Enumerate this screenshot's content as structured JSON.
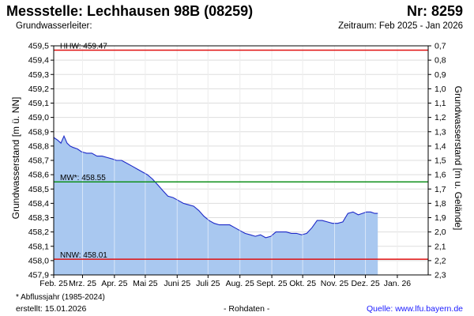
{
  "header": {
    "title": "Messstelle: Lechhausen 98B (08259)",
    "number": "Nr: 8259",
    "aquifer": "Grundwasserleiter:",
    "period": "Zeitraum: Feb 2025 - Jan 2026"
  },
  "footer": {
    "footnote": "* Abflussjahr (1985-2024)",
    "created": "erstellt:  15.01.2026",
    "raw": "- Rohdaten -",
    "source": "Quelle:  www.lfu.bayern.de"
  },
  "colors": {
    "fill": "#a9c8f0",
    "line": "#1c28c8",
    "hhw": "#e01010",
    "mw": "#10901c",
    "nnw": "#e01010",
    "grid": "#dddddd"
  },
  "chart_data": {
    "type": "area",
    "ylabel_left": "Grundwasserstand [m ü. NN]",
    "ylabel_right": "Grundwasserstand [m u. Gelände]",
    "ylim": [
      457.9,
      459.5
    ],
    "yticks_left": [
      "457,9",
      "458,0",
      "458,1",
      "458,2",
      "458,3",
      "458,4",
      "458,5",
      "458,6",
      "458,7",
      "458,8",
      "458,9",
      "459,0",
      "459,1",
      "459,2",
      "459,3",
      "459,4",
      "459,5"
    ],
    "yticks_left_values": [
      457.9,
      458.0,
      458.1,
      458.2,
      458.3,
      458.4,
      458.5,
      458.6,
      458.7,
      458.8,
      458.9,
      459.0,
      459.1,
      459.2,
      459.3,
      459.4,
      459.5
    ],
    "yticks_right": [
      "0,7",
      "0,8",
      "0,9",
      "1,0",
      "1,1",
      "1,2",
      "1,3",
      "1,4",
      "1,5",
      "1,6",
      "1,7",
      "1,8",
      "1,9",
      "2,0",
      "2,1",
      "2,2",
      "2,3"
    ],
    "yticks_right_values": [
      459.5,
      459.4,
      459.3,
      459.2,
      459.1,
      459.0,
      458.9,
      458.8,
      458.7,
      458.6,
      458.5,
      458.4,
      458.3,
      458.2,
      458.1,
      458.0,
      457.9
    ],
    "xlim": [
      "2025-02-01",
      "2026-01-31"
    ],
    "xticks": [
      {
        "date": "2025-02-01",
        "label": "Feb. 25"
      },
      {
        "date": "2025-03-01",
        "label": "Mrz. 25"
      },
      {
        "date": "2025-04-01",
        "label": "Apr. 25"
      },
      {
        "date": "2025-05-01",
        "label": "Mai 25"
      },
      {
        "date": "2025-06-01",
        "label": "Juni 25"
      },
      {
        "date": "2025-07-01",
        "label": "Juli 25"
      },
      {
        "date": "2025-08-01",
        "label": "Aug. 25"
      },
      {
        "date": "2025-09-01",
        "label": "Sept. 25"
      },
      {
        "date": "2025-10-01",
        "label": "Okt. 25"
      },
      {
        "date": "2025-11-01",
        "label": "Nov. 25"
      },
      {
        "date": "2025-12-01",
        "label": "Dez. 25"
      },
      {
        "date": "2026-01-01",
        "label": "Jan. 26"
      }
    ],
    "reference_lines": [
      {
        "label": "HHW: 459.47",
        "value": 459.47,
        "color": "#e01010"
      },
      {
        "label": "MW*: 458.55",
        "value": 458.55,
        "color": "#10901c"
      },
      {
        "label": "NNW: 458.01",
        "value": 458.01,
        "color": "#e01010"
      }
    ],
    "series": [
      {
        "dates": [
          "2025-02-01",
          "2025-02-05",
          "2025-02-08",
          "2025-02-11",
          "2025-02-14",
          "2025-02-17",
          "2025-02-20",
          "2025-02-24",
          "2025-02-28",
          "2025-03-05",
          "2025-03-10",
          "2025-03-15",
          "2025-03-20",
          "2025-03-25",
          "2025-03-30",
          "2025-04-03",
          "2025-04-08",
          "2025-04-13",
          "2025-04-18",
          "2025-04-23",
          "2025-04-28",
          "2025-05-03",
          "2025-05-08",
          "2025-05-13",
          "2025-05-18",
          "2025-05-23",
          "2025-05-28",
          "2025-06-02",
          "2025-06-07",
          "2025-06-12",
          "2025-06-17",
          "2025-06-22",
          "2025-06-27",
          "2025-07-02",
          "2025-07-07",
          "2025-07-12",
          "2025-07-17",
          "2025-07-22",
          "2025-07-27",
          "2025-08-01",
          "2025-08-06",
          "2025-08-11",
          "2025-08-16",
          "2025-08-21",
          "2025-08-26",
          "2025-08-31",
          "2025-09-05",
          "2025-09-10",
          "2025-09-15",
          "2025-09-20",
          "2025-09-25",
          "2025-09-30",
          "2025-10-05",
          "2025-10-10",
          "2025-10-15",
          "2025-10-20",
          "2025-10-25",
          "2025-10-30",
          "2025-11-04",
          "2025-11-09",
          "2025-11-14",
          "2025-11-19",
          "2025-11-24",
          "2025-11-28",
          "2025-12-02",
          "2025-12-06",
          "2025-12-10",
          "2025-12-13"
        ],
        "values": [
          458.86,
          458.84,
          458.82,
          458.87,
          458.82,
          458.8,
          458.79,
          458.78,
          458.76,
          458.75,
          458.75,
          458.73,
          458.73,
          458.72,
          458.71,
          458.7,
          458.7,
          458.68,
          458.66,
          458.64,
          458.62,
          458.6,
          458.57,
          458.53,
          458.49,
          458.45,
          458.44,
          458.42,
          458.4,
          458.39,
          458.38,
          458.35,
          458.31,
          458.28,
          458.26,
          458.25,
          458.25,
          458.25,
          458.23,
          458.21,
          458.19,
          458.18,
          458.17,
          458.18,
          458.16,
          458.17,
          458.2,
          458.2,
          458.2,
          458.19,
          458.19,
          458.18,
          458.19,
          458.23,
          458.28,
          458.28,
          458.27,
          458.26,
          458.26,
          458.27,
          458.33,
          458.34,
          458.32,
          458.33,
          458.34,
          458.34,
          458.33,
          458.33
        ]
      }
    ]
  }
}
